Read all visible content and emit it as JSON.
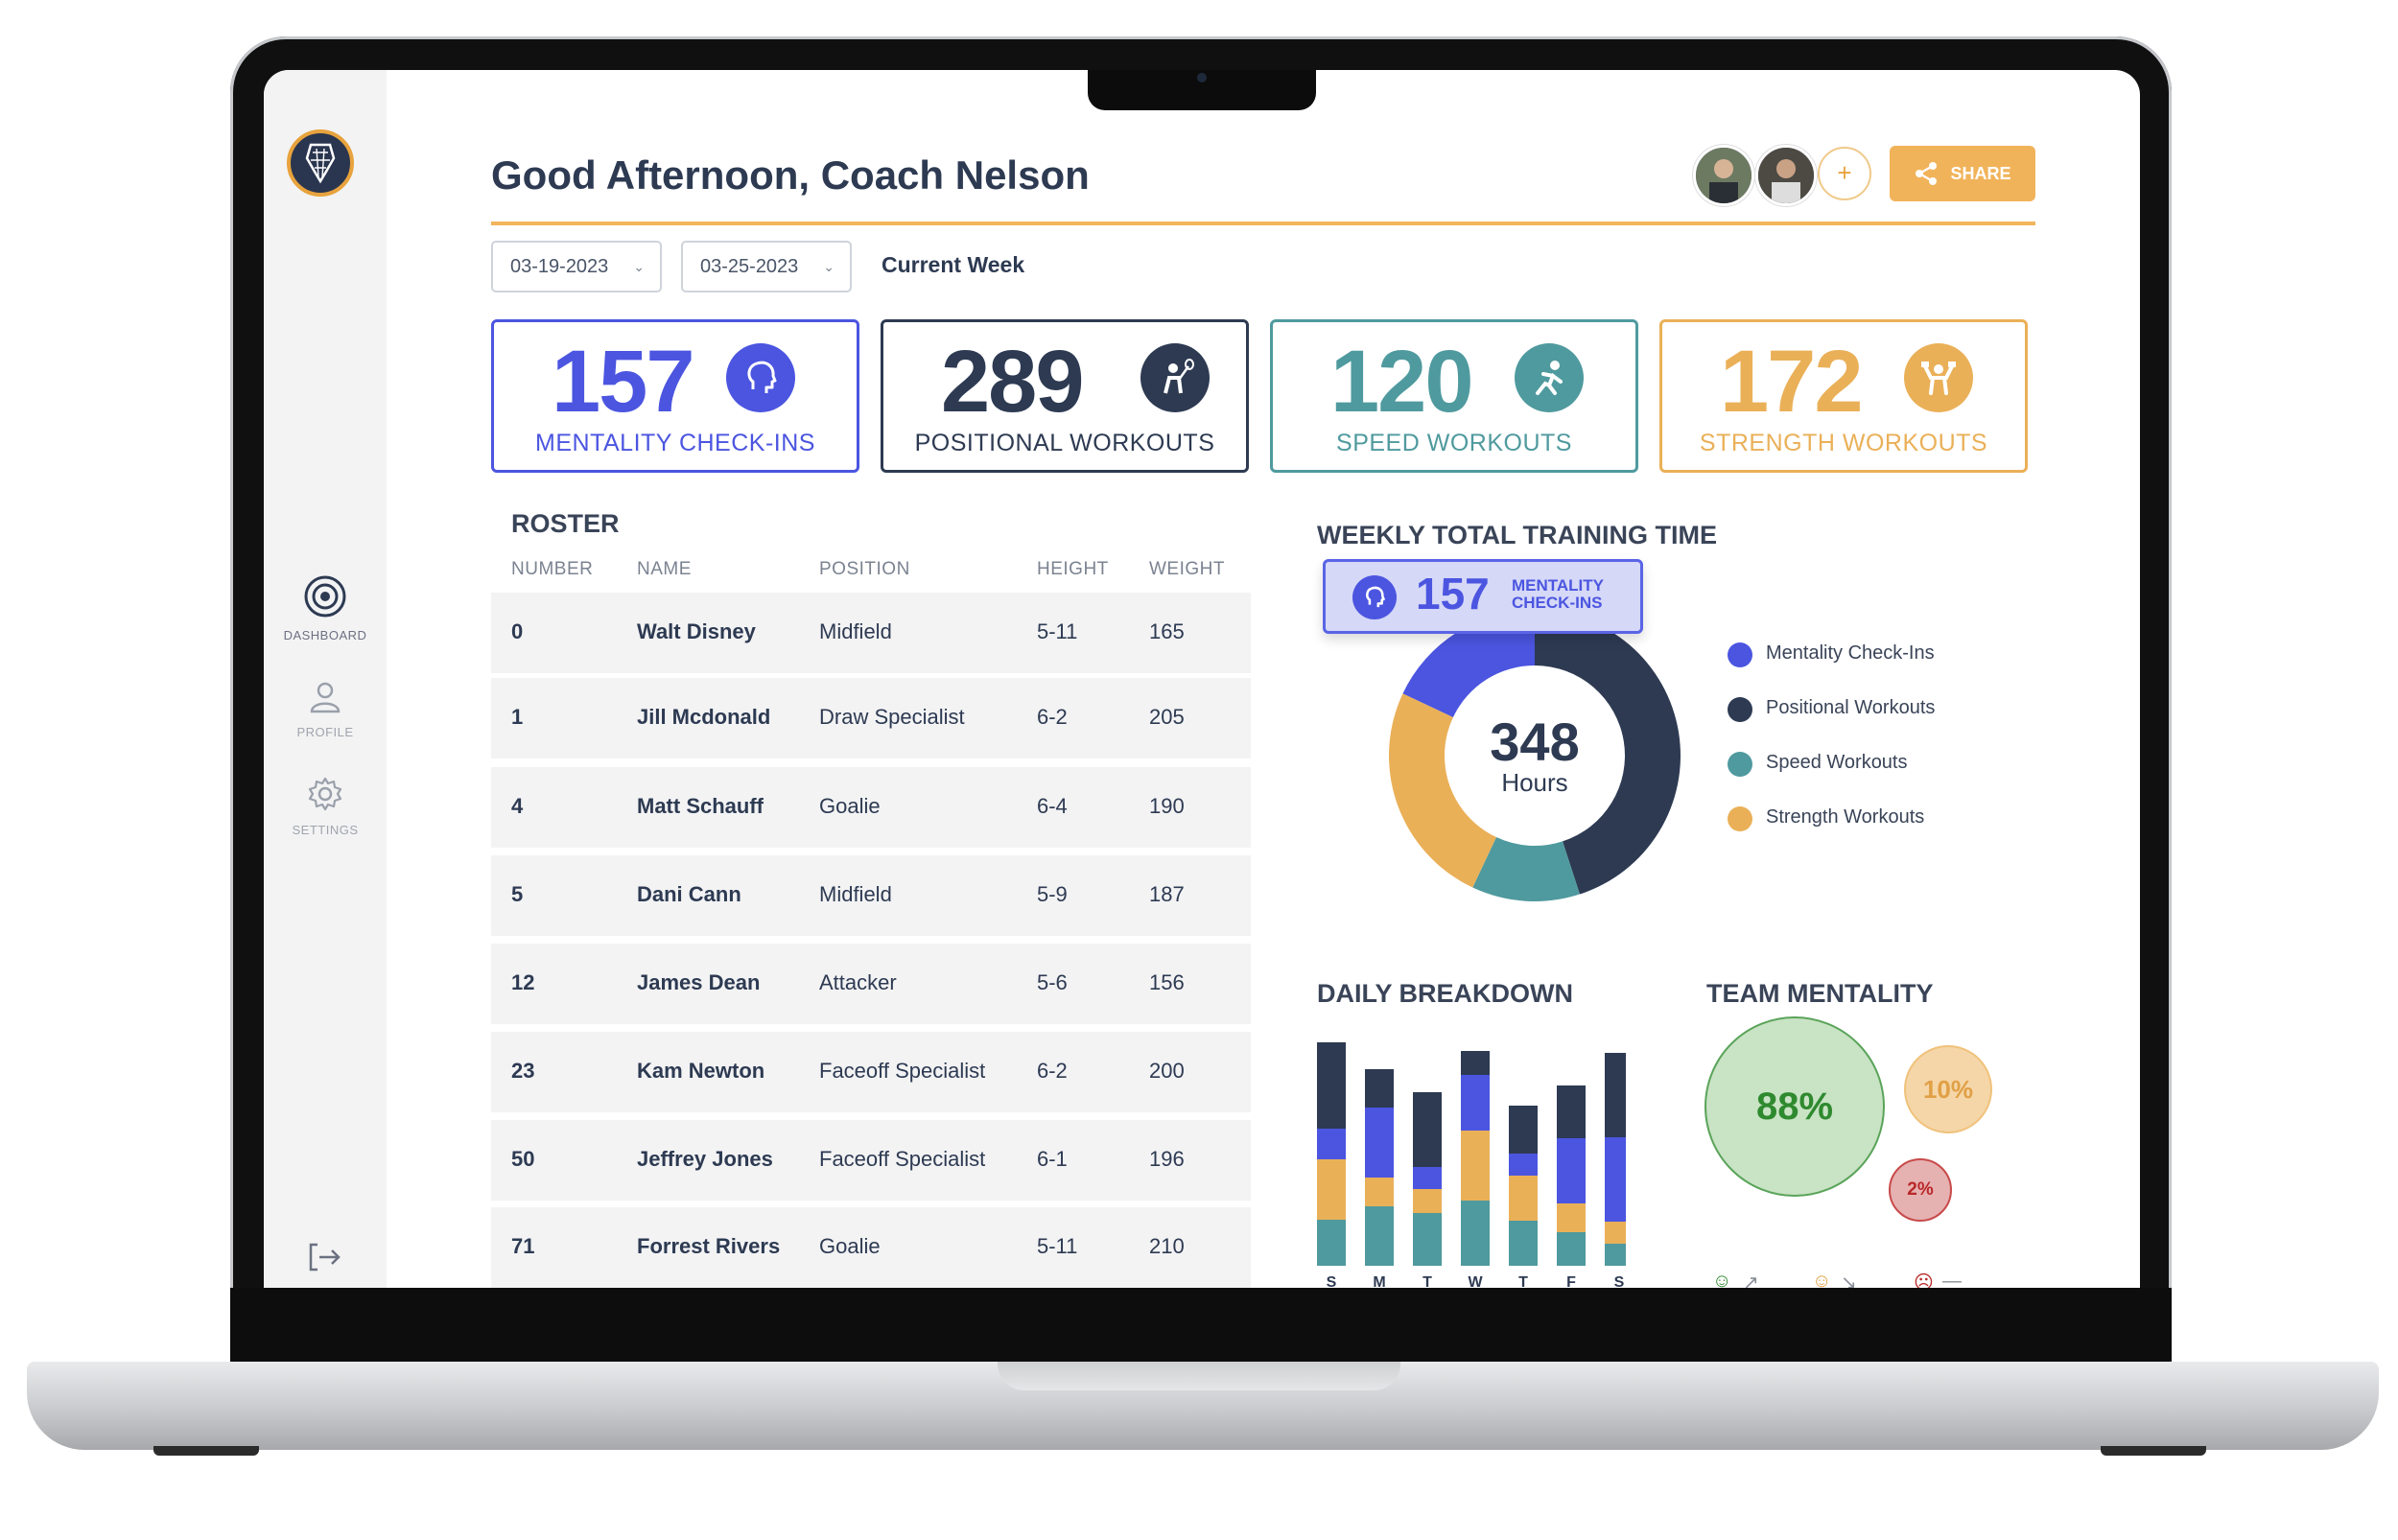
{
  "header": {
    "greeting": "Good Afternoon, Coach Nelson",
    "share_label": "SHARE",
    "add_label": "+"
  },
  "sidebar": {
    "items": [
      {
        "label": "DASHBOARD",
        "icon": "dashboard-icon"
      },
      {
        "label": "PROFILE",
        "icon": "profile-icon"
      },
      {
        "label": "SETTINGS",
        "icon": "gear-icon"
      }
    ]
  },
  "filters": {
    "start_date": "03-19-2023",
    "end_date": "03-25-2023",
    "range_label": "Current Week"
  },
  "stats": [
    {
      "value": "157",
      "label": "MENTALITY CHECK-INS",
      "color": "#4b55e0",
      "icon": "head-icon"
    },
    {
      "value": "289",
      "label": "POSITIONAL WORKOUTS",
      "color": "#2d3a52",
      "icon": "lacrosse-player-icon"
    },
    {
      "value": "120",
      "label": "SPEED WORKOUTS",
      "color": "#4f9a9e",
      "icon": "runner-icon"
    },
    {
      "value": "172",
      "label": "STRENGTH WORKOUTS",
      "color": "#eab058",
      "icon": "weightlifter-icon"
    }
  ],
  "roster": {
    "title": "ROSTER",
    "columns": [
      "NUMBER",
      "NAME",
      "POSITION",
      "HEIGHT",
      "WEIGHT"
    ],
    "rows": [
      [
        "0",
        "Walt Disney",
        "Midfield",
        "5-11",
        "165"
      ],
      [
        "1",
        "Jill Mcdonald",
        "Draw Specialist",
        "6-2",
        "205"
      ],
      [
        "4",
        "Matt Schauff",
        "Goalie",
        "6-4",
        "190"
      ],
      [
        "5",
        "Dani Cann",
        "Midfield",
        "5-9",
        "187"
      ],
      [
        "12",
        "James Dean",
        "Attacker",
        "5-6",
        "156"
      ],
      [
        "23",
        "Kam Newton",
        "Faceoff Specialist",
        "6-2",
        "200"
      ],
      [
        "50",
        "Jeffrey Jones",
        "Faceoff Specialist",
        "6-1",
        "196"
      ],
      [
        "71",
        "Forrest Rivers",
        "Goalie",
        "5-11",
        "210"
      ]
    ]
  },
  "weekly": {
    "title": "WEEKLY TOTAL TRAINING TIME",
    "tooltip_value": "157",
    "tooltip_label_1": "MENTALITY",
    "tooltip_label_2": "CHECK-INS",
    "total": "348",
    "unit": "Hours",
    "legend": [
      {
        "label": "Mentality Check-Ins",
        "color": "#4b55e0"
      },
      {
        "label": "Positional Workouts",
        "color": "#2d3a52"
      },
      {
        "label": "Speed Workouts",
        "color": "#4f9a9e"
      },
      {
        "label": "Strength Workouts",
        "color": "#eab058"
      }
    ]
  },
  "daily": {
    "title": "DAILY BREAKDOWN"
  },
  "mentality": {
    "title": "TEAM MENTALITY",
    "bubbles": [
      {
        "label": "88%",
        "value": 88,
        "color": "#c9e3c5",
        "text_color": "#2f8a2f"
      },
      {
        "label": "10%",
        "value": 10,
        "color": "#f5d6a8",
        "text_color": "#e0a046"
      },
      {
        "label": "2%",
        "value": 2,
        "color": "#e6b1b1",
        "text_color": "#b92828"
      }
    ]
  },
  "chart_data": [
    {
      "type": "pie",
      "title": "WEEKLY TOTAL TRAINING TIME",
      "categories": [
        "Positional Workouts",
        "Speed Workouts",
        "Strength Workouts",
        "Mentality Check-Ins"
      ],
      "values": [
        45,
        12,
        25,
        18
      ],
      "colors": [
        "#2d3a52",
        "#4f9a9e",
        "#eab058",
        "#4b55e0"
      ],
      "center_label": "348 Hours"
    },
    {
      "type": "bar",
      "title": "DAILY BREAKDOWN",
      "stacked": true,
      "categories": [
        "S",
        "M",
        "T",
        "W",
        "T",
        "F",
        "S"
      ],
      "series": [
        {
          "name": "Speed Workouts",
          "color": "#4f9a9e",
          "values": [
            48,
            62,
            55,
            68,
            47,
            35,
            23
          ]
        },
        {
          "name": "Strength Workouts",
          "color": "#eab058",
          "values": [
            63,
            30,
            25,
            73,
            47,
            30,
            23
          ]
        },
        {
          "name": "Mentality Check-Ins",
          "color": "#4b55e0",
          "values": [
            32,
            73,
            23,
            58,
            23,
            68,
            88
          ]
        },
        {
          "name": "Positional Workouts",
          "color": "#2d3a52",
          "values": [
            90,
            40,
            78,
            25,
            50,
            55,
            88
          ]
        }
      ]
    }
  ]
}
